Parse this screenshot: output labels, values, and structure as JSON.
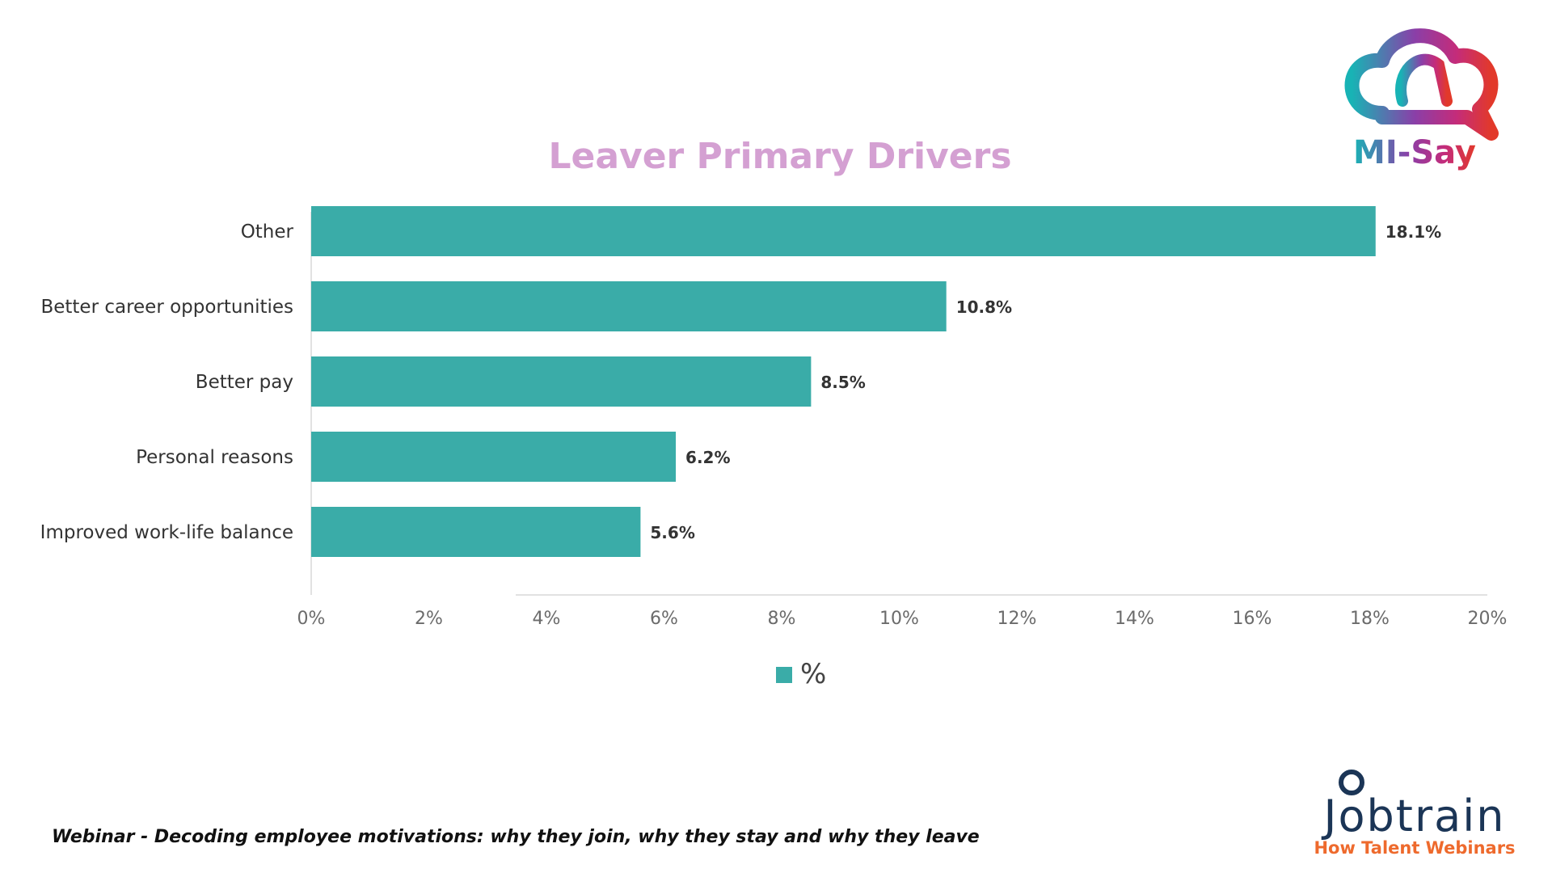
{
  "chart_data": {
    "type": "bar",
    "orientation": "horizontal",
    "title": "Leaver Primary Drivers",
    "categories": [
      "Other",
      "Better career opportunities",
      "Better pay",
      "Personal reasons",
      "Improved work-life balance"
    ],
    "series": [
      {
        "name": "%",
        "values": [
          18.1,
          10.8,
          8.5,
          6.2,
          5.6
        ],
        "labels": [
          "18.1%",
          "10.8%",
          "8.5%",
          "6.2%",
          "5.6%"
        ],
        "color": "#3aaca8"
      }
    ],
    "xlim": [
      0,
      20
    ],
    "x_ticks": [
      "0%",
      "2%",
      "4%",
      "6%",
      "8%",
      "10%",
      "12%",
      "14%",
      "16%",
      "18%",
      "20%"
    ],
    "grid": false,
    "legend_position": "bottom"
  },
  "footer": {
    "text": "Webinar - Decoding employee motivations: why they join, why they stay and why they leave"
  },
  "logos": {
    "misay": {
      "text": "MI-Say",
      "icon": "cloud-chat-icon"
    },
    "jobtrain": {
      "text": "Jobtrain",
      "tagline": "How Talent Webinars"
    }
  },
  "colors": {
    "bar": "#3aaca8",
    "title": "#d4a0d2",
    "jobtrain_navy": "#1b3556",
    "jobtrain_orange": "#ee6a2d"
  }
}
